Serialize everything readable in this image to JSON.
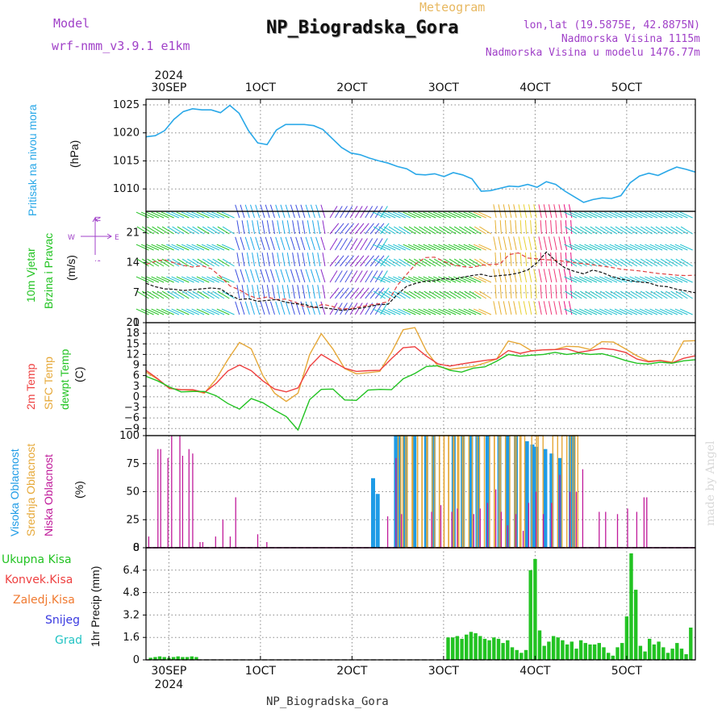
{
  "header": {
    "model_label": "Model",
    "model_value": "wrf-nmm_v3.9.1 e1km",
    "title": "NP_Biogradska_Gora",
    "subtitle": "Meteogram",
    "coords": "lon,lat (19.5875E, 42.8875N)",
    "altitude": "Nadmorska Visina 1115m",
    "model_altitude": "Nadmorska Visina u modelu 1476.77m"
  },
  "footer": {
    "station": "NP_Biogradska_Gora",
    "credit": "made by Angel"
  },
  "colors": {
    "pressure": "#2aa8e8",
    "wind_green": "#22c322",
    "temp2m": "#ee4040",
    "sfc": "#e6a838",
    "dewpt": "#22c322",
    "cloud_high": "#1e9be6",
    "cloud_mid": "#e6a838",
    "cloud_low": "#c01a9a",
    "precip": "#22c322",
    "model_text": "#a040c8",
    "meteogram_text": "#e8b860"
  },
  "axis": {
    "year": "2024",
    "dates": [
      "30SEP",
      "1OCT",
      "2OCT",
      "3OCT",
      "4OCT",
      "5OCT"
    ]
  },
  "chart_data": [
    {
      "type": "line",
      "ylabel": "Pritisak na nivou mora",
      "unit": "(hPa)",
      "ylim": [
        1006,
        1026
      ],
      "yticks": [
        1010,
        1015,
        1020,
        1025
      ],
      "series": [
        {
          "values": [
            1019.3,
            1019.5,
            1020.4,
            1022.4,
            1023.8,
            1024.3,
            1024.1,
            1024.1,
            1023.6,
            1024.9,
            1023.5,
            1020.4,
            1018.2,
            1017.9,
            1020.5,
            1021.5,
            1021.5,
            1021.5,
            1021.3,
            1020.6,
            1019.0,
            1017.4,
            1016.4,
            1016.1,
            1015.5,
            1015.0,
            1014.6,
            1014.0,
            1013.6,
            1012.6,
            1012.5,
            1012.7,
            1012.2,
            1012.9,
            1012.5,
            1011.8,
            1009.6,
            1009.7,
            1010.1,
            1010.5,
            1010.4,
            1010.8,
            1010.3,
            1011.3,
            1010.8,
            1009.6,
            1008.6,
            1007.6,
            1008.1,
            1008.4,
            1008.3,
            1008.8,
            1011.1,
            1012.3,
            1012.8,
            1012.4,
            1013.2,
            1013.9,
            1013.5,
            1013.0
          ]
        }
      ]
    },
    {
      "type": "line",
      "ylabel": "10m Vjetar Brzina i Pravac",
      "unit": "(m/s)",
      "ylim": [
        0,
        26
      ],
      "yticks": [
        0,
        7,
        14,
        21
      ],
      "compass": {
        "n": "N",
        "s": "S",
        "e": "E",
        "w": "W"
      },
      "series": [
        {
          "name": "speed",
          "values": [
            9.2,
            8.4,
            7.9,
            7.8,
            7.5,
            7.7,
            7.9,
            8.1,
            7.9,
            6.5,
            5.4,
            5.6,
            5.0,
            5.2,
            5.4,
            4.8,
            4.4,
            4.3,
            3.6,
            3.5,
            3.2,
            2.9,
            3.1,
            3.4,
            3.8,
            4.2,
            4.3,
            6.6,
            8.5,
            9.2,
            9.7,
            9.8,
            10.3,
            10.1,
            10.6,
            11.0,
            11.3,
            10.8,
            11.0,
            11.2,
            11.6,
            12.3,
            14.0,
            16.5,
            14.4,
            12.8,
            12.0,
            11.4,
            12.3,
            11.7,
            10.8,
            10.2,
            9.8,
            9.5,
            9.3,
            8.6,
            8.4,
            7.8,
            7.4,
            7.0
          ]
        },
        {
          "name": "gust",
          "values": [
            13.6,
            14.3,
            14.7,
            14.0,
            13.4,
            13.0,
            13.3,
            12.6,
            10.8,
            8.6,
            7.7,
            6.4,
            5.6,
            6.0,
            5.4,
            5.5,
            4.8,
            3.8,
            3.5,
            4.3,
            3.8,
            3.2,
            3.3,
            3.7,
            4.1,
            4.4,
            4.9,
            8.7,
            11.3,
            13.8,
            15.2,
            15.3,
            14.3,
            13.5,
            13.1,
            12.9,
            13.4,
            13.6,
            13.7,
            15.9,
            16.3,
            15.1,
            14.9,
            14.7,
            14.6,
            14.3,
            14.0,
            13.8,
            13.5,
            13.2,
            12.9,
            12.5,
            12.3,
            12.1,
            11.8,
            11.5,
            11.3,
            11.1,
            11.0,
            11.1
          ]
        }
      ]
    },
    {
      "type": "line",
      "ylabel": "2m Temp",
      "unit": "(C)",
      "ylim": [
        -11,
        21
      ],
      "yticks": [
        -9,
        -6,
        -3,
        0,
        3,
        6,
        9,
        12,
        15,
        18,
        21
      ],
      "series": [
        {
          "name": "2m Temp",
          "values": [
            7.5,
            5.1,
            2.4,
            2.0,
            2.0,
            1.2,
            3.8,
            7.3,
            9.0,
            7.4,
            4.5,
            2.2,
            1.4,
            2.5,
            8.6,
            12.0,
            10.0,
            8.1,
            7.2,
            7.4,
            7.5,
            10.8,
            13.9,
            14.2,
            11.5,
            9.3,
            8.7,
            9.3,
            9.8,
            10.3,
            10.7,
            13.1,
            12.3,
            13.0,
            13.3,
            13.4,
            13.6,
            12.6,
            13.1,
            13.7,
            13.4,
            12.6,
            10.7,
            9.9,
            10.3,
            9.6,
            10.9,
            11.6
          ]
        },
        {
          "name": "SFC Temp",
          "values": [
            7.0,
            5.0,
            2.4,
            2.0,
            1.8,
            1.0,
            5.0,
            10.5,
            15.4,
            13.6,
            6.0,
            1.0,
            -1.3,
            1.0,
            12.0,
            17.9,
            13.5,
            8.0,
            6.5,
            6.8,
            7.2,
            12.6,
            19.0,
            19.6,
            12.9,
            8.6,
            7.8,
            8.2,
            8.6,
            9.6,
            10.7,
            15.8,
            15.0,
            13.0,
            13.3,
            13.4,
            14.3,
            14.2,
            13.4,
            15.6,
            15.5,
            13.6,
            11.6,
            10.1,
            10.3,
            9.8,
            15.8,
            15.9
          ]
        },
        {
          "name": "dewpt Temp",
          "values": [
            5.8,
            4.5,
            2.8,
            1.4,
            1.5,
            1.5,
            0.3,
            -1.9,
            -3.5,
            -0.5,
            -1.7,
            -3.8,
            -5.6,
            -9.4,
            -0.8,
            2.1,
            2.2,
            -0.9,
            -1.0,
            1.9,
            2.1,
            2.0,
            5.1,
            6.6,
            8.6,
            8.8,
            7.5,
            7.0,
            8.1,
            8.5,
            10.1,
            12.0,
            11.5,
            11.8,
            12.0,
            12.6,
            12.0,
            12.4,
            12.0,
            12.2,
            11.4,
            10.3,
            9.5,
            9.3,
            9.8,
            9.5,
            10.2,
            10.5
          ]
        }
      ]
    },
    {
      "type": "bar",
      "ylabel": "Visoka Oblacnost",
      "ylabel2": "Srednja Oblacnost",
      "ylabel3": "Niska Oblacnost",
      "unit": "(%)",
      "ylim": [
        0,
        100
      ],
      "yticks": [
        0,
        25,
        50,
        75,
        100
      ],
      "series": [
        {
          "name": "Visoka Oblacnost",
          "x": [
            24.8,
            25.3,
            27.3,
            27.6,
            28.3,
            29.3,
            30.6,
            31.4,
            33.6,
            34.6,
            35.5,
            36.2,
            37.3,
            38.6,
            39.5,
            40.4,
            41.6,
            42.2,
            42.6,
            43.6,
            44.3,
            45.2,
            46.4,
            46.7
          ],
          "values": [
            62,
            48,
            100,
            100,
            100,
            100,
            100,
            100,
            100,
            100,
            100,
            100,
            100,
            100,
            100,
            100,
            95,
            92,
            90,
            88,
            84,
            80,
            100,
            100
          ]
        },
        {
          "name": "Srednja Oblacnost",
          "x": [
            27.8,
            28.1,
            28.8,
            29.4,
            29.9,
            30.4,
            31.0,
            31.8,
            32.3,
            32.8,
            33.3,
            33.9,
            34.3,
            35.0,
            35.9,
            36.7,
            37.8,
            38.3,
            39.0,
            40.0,
            40.7,
            41.1,
            42.4,
            43.1,
            44.7,
            45.7,
            46.6,
            46.9
          ],
          "values": [
            100,
            100,
            100,
            100,
            100,
            100,
            100,
            100,
            100,
            100,
            100,
            100,
            100,
            100,
            100,
            100,
            100,
            100,
            100,
            100,
            100,
            100,
            100,
            100,
            100,
            100,
            100,
            100
          ]
        },
        {
          "name": "Niska Oblacnost",
          "x": [
            0.3,
            1.3,
            1.6,
            2.4,
            2.8,
            3.7,
            4.0,
            4.7,
            5.1,
            5.9,
            6.2,
            7.6,
            8.4,
            9.2,
            9.8,
            12.2,
            13.2,
            26.4,
            27.3,
            27.9,
            31.2,
            32.2,
            33.4,
            34.0,
            35.8,
            36.5,
            37.3,
            38.2,
            38.8,
            39.5,
            40.4,
            41.2,
            41.8,
            42.6,
            43.4,
            44.3,
            45.2,
            46.3,
            47.0,
            47.7,
            49.5,
            50.2,
            51.5,
            52.6,
            53.6,
            54.4,
            54.7
          ],
          "values": [
            10,
            88,
            88,
            80,
            100,
            100,
            82,
            88,
            84,
            5,
            5,
            10,
            25,
            10,
            45,
            12,
            5,
            28,
            80,
            30,
            32,
            38,
            32,
            35,
            30,
            35,
            40,
            52,
            32,
            20,
            30,
            15,
            40,
            50,
            30,
            40,
            65,
            50,
            50,
            70,
            32,
            32,
            30,
            35,
            32,
            45,
            45
          ]
        }
      ]
    },
    {
      "type": "bar",
      "ylabel": "1hr Precip",
      "unit": "(mm)",
      "ylim": [
        0,
        8
      ],
      "yticks": [
        0,
        1.6,
        3.2,
        4.8,
        6.4,
        8
      ],
      "legend": [
        "Ukupna Kisa",
        "Konvek.Kisa",
        "Zaledj.Kisa",
        "Snijeg",
        "Grad"
      ],
      "series": [
        {
          "name": "Ukupna Kisa",
          "x": [
            0.5,
            1.0,
            1.5,
            2.0,
            2.5,
            3.0,
            3.5,
            4.0,
            4.5,
            5.0,
            5.5,
            33.0,
            33.5,
            34.0,
            34.5,
            35.0,
            35.5,
            36.0,
            36.5,
            37.0,
            37.5,
            38.0,
            38.5,
            39.0,
            39.5,
            40.0,
            40.5,
            41.0,
            41.5,
            42.0,
            42.5,
            43.0,
            43.5,
            44.0,
            44.5,
            45.0,
            45.5,
            46.0,
            46.5,
            47.0,
            47.5,
            48.0,
            48.5,
            49.0,
            49.5,
            50.0,
            50.5,
            51.0,
            51.5,
            52.0,
            52.5,
            53.0,
            53.5,
            54.0,
            54.5,
            55.0,
            55.5,
            56.0,
            56.5,
            57.0,
            57.5,
            58.0,
            58.5,
            59.0,
            59.5
          ],
          "values": [
            0.15,
            0.2,
            0.25,
            0.2,
            0.15,
            0.2,
            0.25,
            0.2,
            0.2,
            0.25,
            0.2,
            1.6,
            1.6,
            1.7,
            1.5,
            1.8,
            2.0,
            1.9,
            1.7,
            1.5,
            1.4,
            1.6,
            1.5,
            1.2,
            1.4,
            0.9,
            0.7,
            0.5,
            0.7,
            6.4,
            7.2,
            2.1,
            1.0,
            1.3,
            1.7,
            1.6,
            1.4,
            1.1,
            1.3,
            0.8,
            1.4,
            1.2,
            1.1,
            1.1,
            1.2,
            0.9,
            0.5,
            0.3,
            0.9,
            1.2,
            3.1,
            7.6,
            5.0,
            1.0,
            0.6,
            1.5,
            1.1,
            1.3,
            0.9,
            0.5,
            0.8,
            1.2,
            0.8,
            0.4,
            2.3
          ]
        }
      ]
    }
  ]
}
